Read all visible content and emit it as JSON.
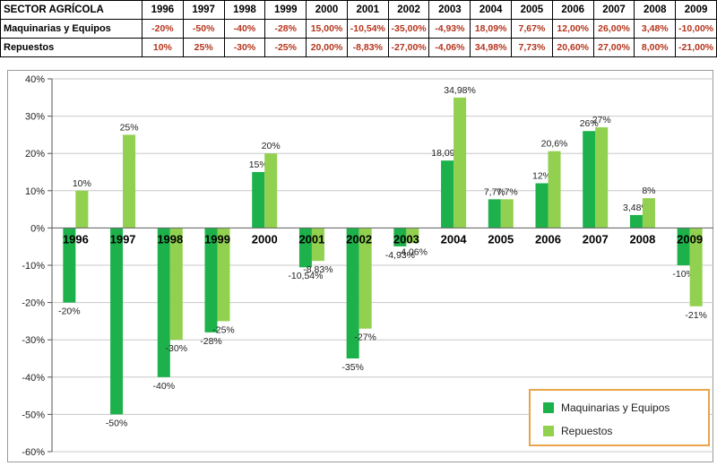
{
  "table": {
    "header_label": "SECTOR AGRÍCOLA",
    "years": [
      "1996",
      "1997",
      "1998",
      "1999",
      "2000",
      "2001",
      "2002",
      "2003",
      "2004",
      "2005",
      "2006",
      "2007",
      "2008",
      "2009"
    ],
    "rows": [
      {
        "label": "Maquinarias y Equipos",
        "values": [
          "-20%",
          "-50%",
          "-40%",
          "-28%",
          "15,00%",
          "-10,54%",
          "-35,00%",
          "-4,93%",
          "18,09%",
          "7,67%",
          "12,00%",
          "26,00%",
          "3,48%",
          "-10,00%"
        ]
      },
      {
        "label": "Repuestos",
        "values": [
          "10%",
          "25%",
          "-30%",
          "-25%",
          "20,00%",
          "-8,83%",
          "-27,00%",
          "-4,06%",
          "34,98%",
          "7,73%",
          "20,60%",
          "27,00%",
          "8,00%",
          "-21,00%"
        ]
      }
    ]
  },
  "chart_data": {
    "type": "bar",
    "categories": [
      "1996",
      "1997",
      "1998",
      "1999",
      "2000",
      "2001",
      "2002",
      "2003",
      "2004",
      "2005",
      "2006",
      "2007",
      "2008",
      "2009"
    ],
    "series": [
      {
        "name": "Maquinarias y Equipos",
        "color": "#1db14b",
        "values": [
          -20,
          -50,
          -40,
          -28,
          15,
          -10.54,
          -35,
          -4.93,
          18.09,
          7.7,
          12,
          26,
          3.48,
          -10
        ],
        "labels": [
          "-20%",
          "-50%",
          "-40%",
          "-28%",
          "15%",
          "-10,54%",
          "-35%",
          "-4,93%",
          "18,09%",
          "7,7%",
          "12%",
          "26%",
          "3,48%",
          "-10%"
        ]
      },
      {
        "name": "Repuestos",
        "color": "#92d050",
        "values": [
          10,
          25,
          -30,
          -25,
          20,
          -8.83,
          -27,
          -4.06,
          34.98,
          7.7,
          20.6,
          27,
          8,
          -21
        ],
        "labels": [
          "10%",
          "25%",
          "-30%",
          "-25%",
          "20%",
          "-8,83%",
          "-27%",
          "-4,06%",
          "34,98%",
          "7,7%",
          "20,6%",
          "27%",
          "8%",
          "-21%"
        ]
      }
    ],
    "ylim": [
      -60,
      40
    ],
    "yticks": [
      -60,
      -50,
      -40,
      -30,
      -20,
      -10,
      0,
      10,
      20,
      30,
      40
    ],
    "ytick_labels": [
      "-60%",
      "-50%",
      "-40%",
      "-30%",
      "-20%",
      "-10%",
      "0%",
      "10%",
      "20%",
      "30%",
      "40%"
    ],
    "grid": true,
    "legend_position": "bottom-right"
  }
}
